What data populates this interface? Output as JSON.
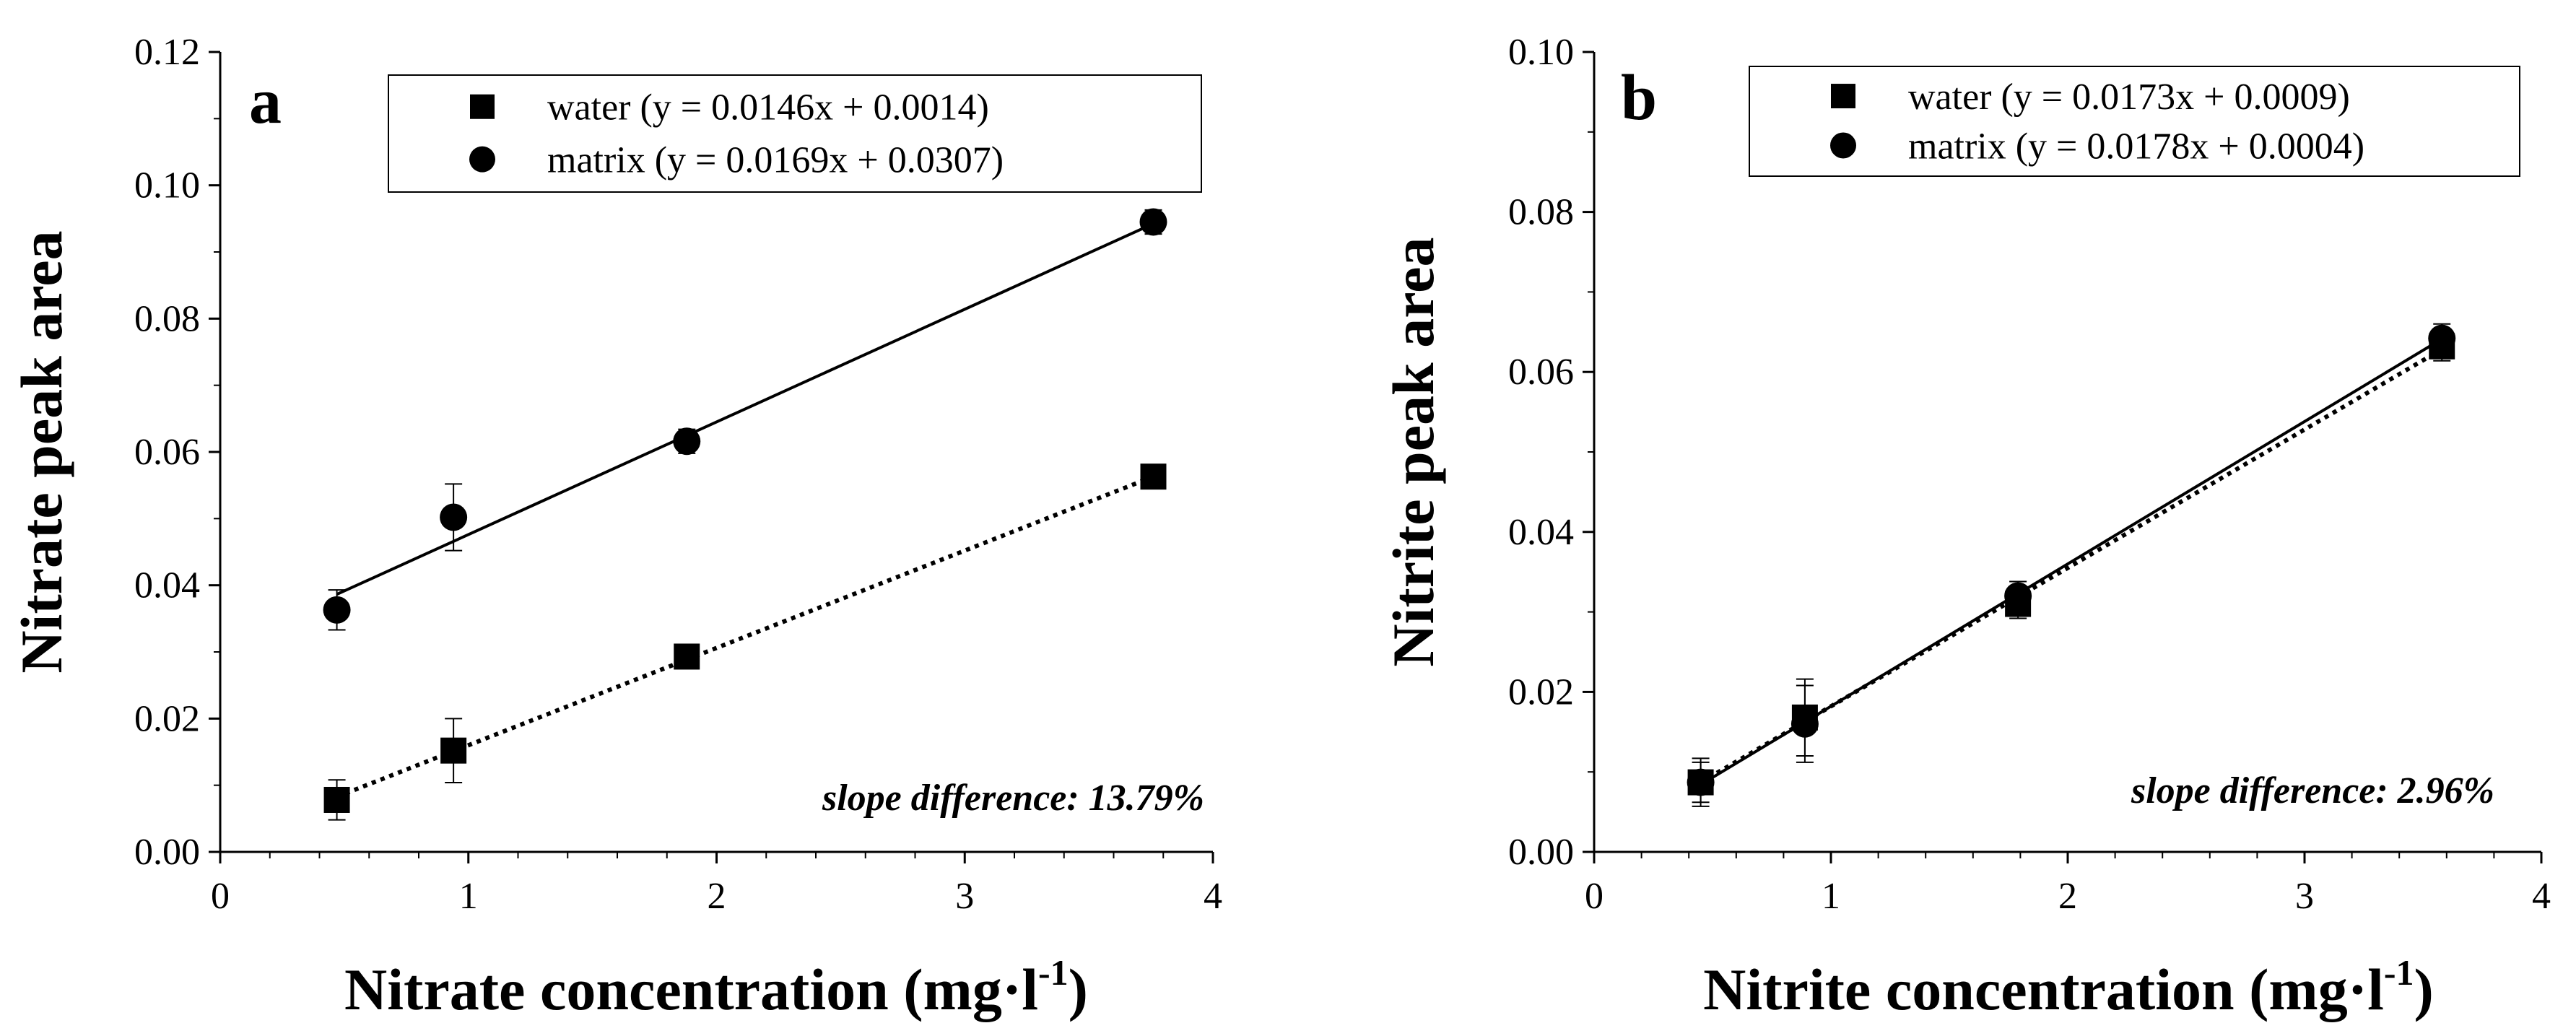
{
  "chart_data": [
    {
      "type": "scatter",
      "panel_label": "a",
      "ylabel": "Nitrate peak area",
      "xlabel_main": "Nitrate concentration (mg·l",
      "xlabel_sup": "-1",
      "xlabel_close": ")",
      "xlim": [
        0,
        4
      ],
      "ylim": [
        0,
        0.12
      ],
      "x_ticks": [
        0,
        1,
        2,
        3,
        4
      ],
      "y_ticks": [
        0,
        0.02,
        0.04,
        0.06,
        0.08,
        0.1,
        0.12
      ],
      "x_tick_labels": [
        "0",
        "1",
        "2",
        "3",
        "4"
      ],
      "y_tick_labels": [
        "0.00",
        "0.02",
        "0.04",
        "0.06",
        "0.08",
        "0.10",
        "0.12"
      ],
      "grid": false,
      "legend_position": "top-right",
      "annotation": "slope difference: 13.79%",
      "series": [
        {
          "name": "water (y = 0.0146x + 0.0014)",
          "marker": "square",
          "line_style": "dotted",
          "fit": {
            "slope": 0.0146,
            "intercept": 0.0014
          },
          "x": [
            0.47,
            0.94,
            1.88,
            3.76
          ],
          "y": [
            0.0078,
            0.0152,
            0.0293,
            0.0563
          ],
          "err": [
            0.003,
            0.0048,
            0.0012,
            0.0011
          ]
        },
        {
          "name": "matrix (y = 0.0169x + 0.0307)",
          "marker": "circle",
          "line_style": "solid",
          "fit": {
            "slope": 0.0169,
            "intercept": 0.0307
          },
          "x": [
            0.47,
            0.94,
            1.88,
            3.76
          ],
          "y": [
            0.0363,
            0.0502,
            0.0616,
            0.0945
          ],
          "err": [
            0.003,
            0.005,
            0.0018,
            0.0018
          ]
        }
      ]
    },
    {
      "type": "scatter",
      "panel_label": "b",
      "ylabel": "Nitrite peak area",
      "xlabel_main": "Nitrite concentration (mg·l",
      "xlabel_sup": "-1",
      "xlabel_close": ")",
      "xlim": [
        0,
        4
      ],
      "ylim": [
        0,
        0.1
      ],
      "x_ticks": [
        0,
        1,
        2,
        3,
        4
      ],
      "y_ticks": [
        0,
        0.02,
        0.04,
        0.06,
        0.08,
        0.1
      ],
      "x_tick_labels": [
        "0",
        "1",
        "2",
        "3",
        "4"
      ],
      "y_tick_labels": [
        "0.00",
        "0.02",
        "0.04",
        "0.06",
        "0.08",
        "0.10"
      ],
      "grid": false,
      "legend_position": "top-right",
      "annotation": "slope difference: 2.96%",
      "series": [
        {
          "name": "water (y = 0.0173x + 0.0009)",
          "marker": "square",
          "line_style": "dotted",
          "fit": {
            "slope": 0.0173,
            "intercept": 0.0009
          },
          "x": [
            0.45,
            0.89,
            1.79,
            3.58
          ],
          "y": [
            0.0087,
            0.0168,
            0.031,
            0.0632
          ],
          "err": [
            0.003,
            0.0048,
            0.0018,
            0.0018
          ]
        },
        {
          "name": "matrix (y = 0.0178x + 0.0004)",
          "marker": "circle",
          "line_style": "solid",
          "fit": {
            "slope": 0.0178,
            "intercept": 0.0004
          },
          "x": [
            0.45,
            0.89,
            1.79,
            3.58
          ],
          "y": [
            0.0087,
            0.016,
            0.032,
            0.0642
          ],
          "err": [
            0.0025,
            0.0048,
            0.0018,
            0.0018
          ]
        }
      ]
    }
  ]
}
